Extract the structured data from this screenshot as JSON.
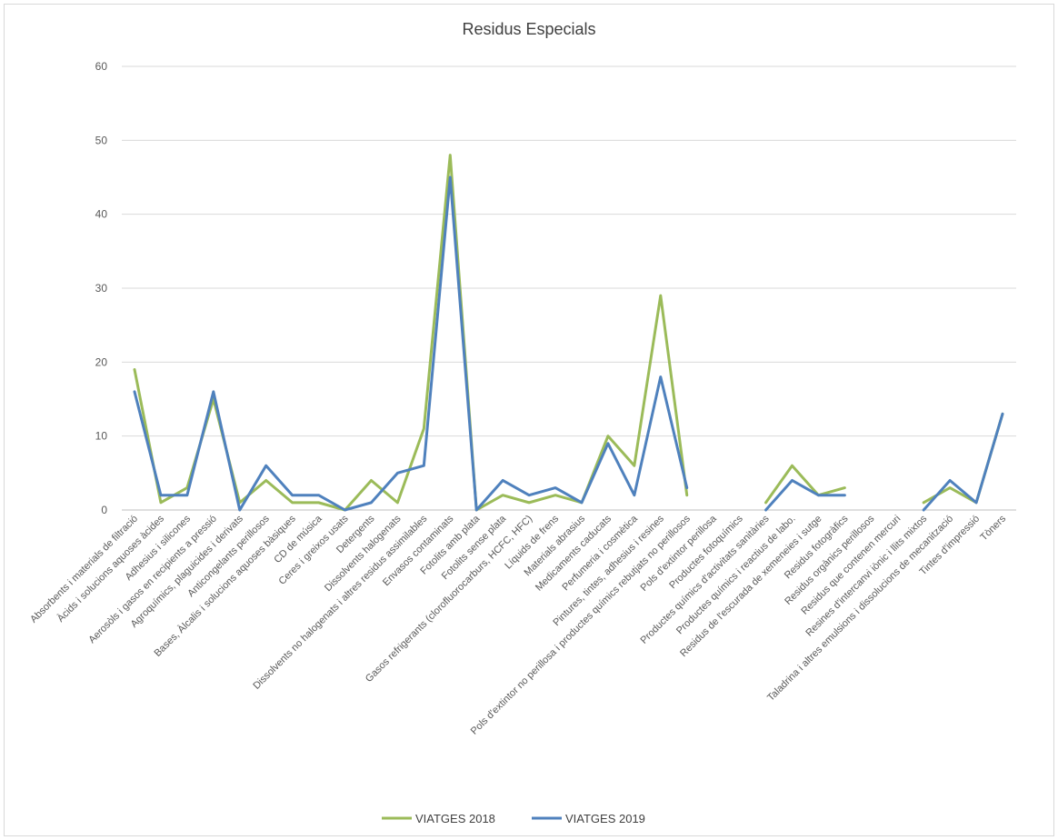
{
  "chart_data": {
    "type": "line",
    "title": "Residus Especials",
    "xlabel": "",
    "ylabel": "",
    "ylim": [
      0,
      60
    ],
    "yticks": [
      0,
      10,
      20,
      30,
      40,
      50,
      60
    ],
    "grid": true,
    "legend_position": "bottom",
    "categories": [
      "Absorbents i materials de filtració",
      "Àcids i solucions aquoses àcides",
      "Adhesius i silicones",
      "Aerosòls i gasos en recipients a pressió",
      "Agroquímics, plaguicides i derivats",
      "Anticongelants perillosos",
      "Bases, Àlcalis i solucions aquoses bàsiques",
      "CD de música",
      "Ceres i greixos usats",
      "Detergents",
      "Dissolvents halogenats",
      "Dissolvents no halogenats i altres residus assimilables",
      "Envasos contaminats",
      "Fotolits amb plata",
      "Fotolits sense plata",
      "Gasos refrigerants (clorofluorocarburs, HCFC, HFC)",
      "Líquids de frens",
      "Materials abrasius",
      "Medicaments caducats",
      "Perfumeria i cosmètica",
      "Pintures, tintes, adhesius i resines",
      "Pols d'extintor no perillosa i productes químics rebutjats no perillosos",
      "Pols d'extintor perillosa",
      "Productes fotoquímics",
      "Productes químics d'activitats sanitàries",
      "Productes químics i reactius de labo.",
      "Residus de l'escurada de xemeneies i sutge",
      "Residus fotogràfics",
      "Residus orgànics perillosos",
      "Residus que contenen mercuri",
      "Resines d'intercanvi iònic i llits mixtos",
      "Taladrina i altres emulsions i dissolucions de mecanització",
      "Tintes d'impressió",
      "Tòners"
    ],
    "series": [
      {
        "name": "VIATGES 2018",
        "color": "#9bbb59",
        "values": [
          19,
          1,
          3,
          15,
          1,
          4,
          1,
          1,
          0,
          4,
          1,
          11,
          48,
          0,
          2,
          1,
          2,
          1,
          10,
          6,
          29,
          2,
          null,
          null,
          1,
          6,
          2,
          3,
          null,
          null,
          1,
          3,
          1,
          13
        ]
      },
      {
        "name": "VIATGES 2019",
        "color": "#4f81bd",
        "values": [
          16,
          2,
          2,
          16,
          0,
          6,
          2,
          2,
          0,
          1,
          5,
          6,
          45,
          0,
          4,
          2,
          3,
          1,
          9,
          2,
          18,
          3,
          null,
          null,
          0,
          4,
          2,
          2,
          null,
          null,
          0,
          4,
          1,
          13
        ]
      }
    ]
  }
}
